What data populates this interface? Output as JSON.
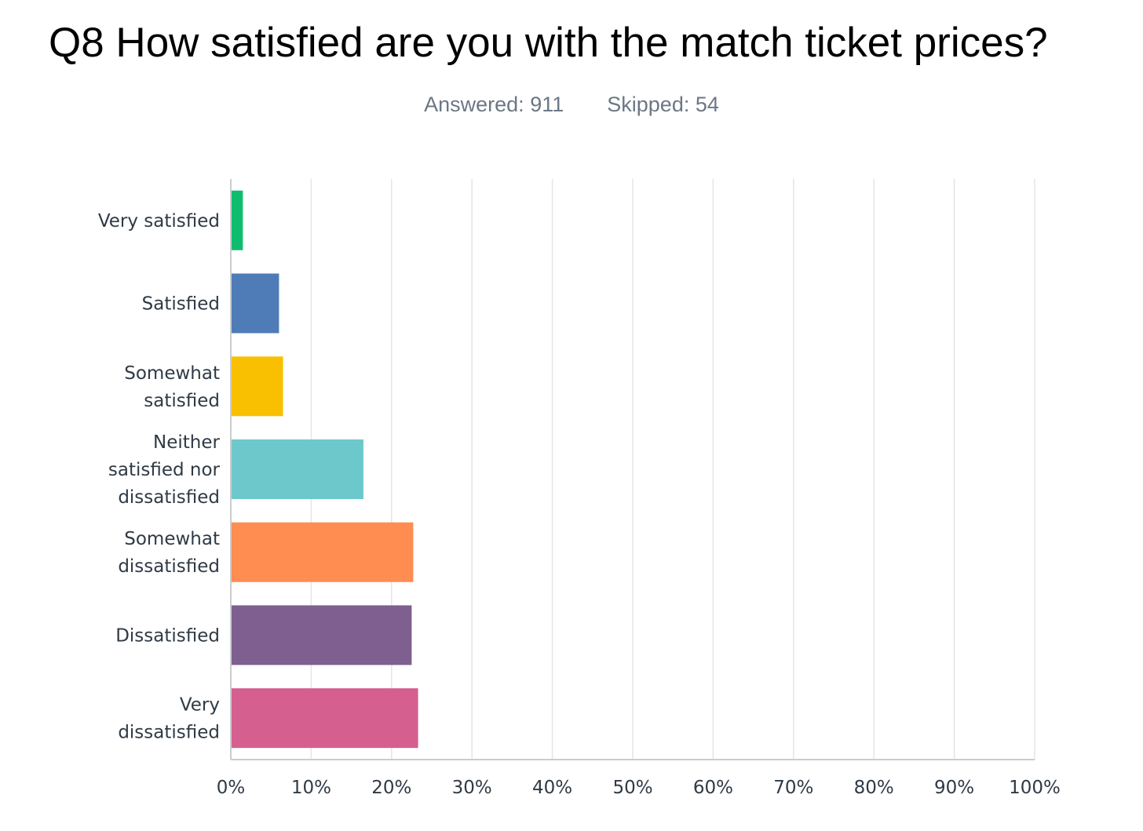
{
  "title": "Q8 How satisfied are you with the match ticket prices?",
  "stats": {
    "answered_label": "Answered:",
    "answered": "911",
    "skipped_label": "Skipped:",
    "skipped": "54"
  },
  "chart_data": {
    "type": "bar",
    "orientation": "horizontal",
    "categories": [
      "Very satisfied",
      "Satisfied",
      "Somewhat satisfied",
      "Neither satisfied nor dissatisfied",
      "Somewhat dissatisfied",
      "Dissatisfied",
      "Very dissatisfied"
    ],
    "category_label_lines": [
      [
        "Very satisfied"
      ],
      [
        "Satisfied"
      ],
      [
        "Somewhat",
        "satisfied"
      ],
      [
        "Neither",
        "satisfied nor",
        "dissatisfied"
      ],
      [
        "Somewhat",
        "dissatisfied"
      ],
      [
        "Dissatisfied"
      ],
      [
        "Very",
        "dissatisfied"
      ]
    ],
    "values": [
      1.5,
      6.0,
      6.5,
      16.5,
      22.7,
      22.5,
      23.3
    ],
    "colors": [
      "#10bd6f",
      "#4f7cb6",
      "#f8c000",
      "#6dc8cb",
      "#ff8c50",
      "#7e5f8f",
      "#d55f8e"
    ],
    "xlim": [
      0,
      100
    ],
    "x_ticks": [
      "0%",
      "10%",
      "20%",
      "30%",
      "40%",
      "50%",
      "60%",
      "70%",
      "80%",
      "90%",
      "100%"
    ],
    "grid": true,
    "legend": "none",
    "xlabel": "",
    "ylabel": ""
  }
}
